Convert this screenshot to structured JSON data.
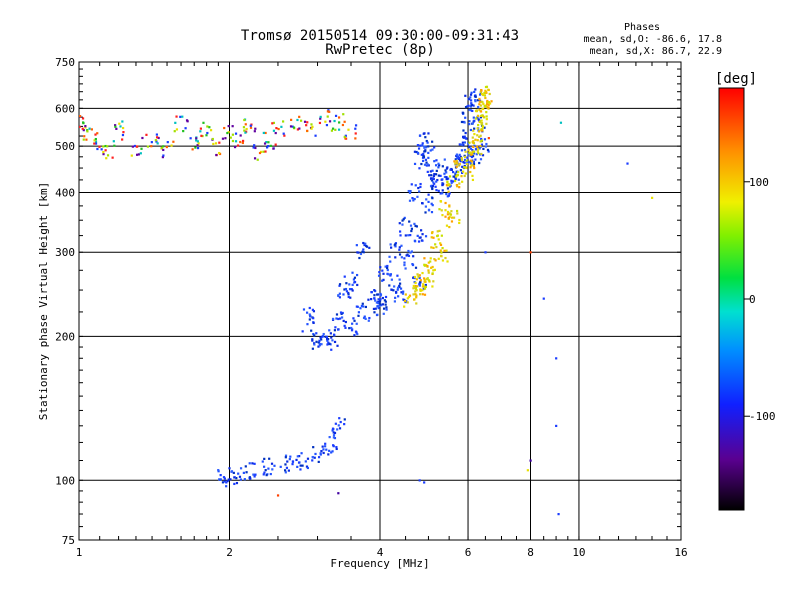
{
  "chart_data": {
    "type": "scatter",
    "title": "Tromsø 20150514 09:30:00-09:31:43",
    "subtitle": "RwPretec (8p)",
    "xlabel": "Frequency [MHz]",
    "ylabel": "Stationary phase Virtual Height [km]",
    "xscale": "log",
    "yscale": "log",
    "xlim": [
      1,
      16
    ],
    "ylim": [
      75,
      750
    ],
    "xticks": [
      1,
      2,
      4,
      6,
      8,
      10,
      16
    ],
    "yticks": [
      75,
      100,
      200,
      300,
      400,
      500,
      600,
      750
    ],
    "grid": true,
    "phase_info": {
      "title": "Phases",
      "o_stats": "mean, sd,O: -86.6, 17.8",
      "x_stats": "mean, sd,X: 86.7, 22.9"
    },
    "colorbar": {
      "label": "[deg]",
      "range": [
        -180,
        180
      ],
      "ticks": [
        100,
        0,
        -100
      ]
    },
    "series": [
      {
        "mode": "O",
        "phase": -100,
        "color": "#1a3cff",
        "x": [
          1.95,
          2.05,
          2.2,
          2.4,
          2.6,
          2.8,
          3.0,
          3.2,
          3.3,
          2.9,
          3.0,
          3.1,
          3.2,
          3.3,
          3.4,
          3.5,
          3.7,
          3.9,
          4.1,
          4.3,
          4.5,
          4.7,
          4.8,
          4.9,
          5.0,
          5.1,
          5.2,
          5.4,
          5.6,
          5.8,
          5.9,
          6.0,
          6.1,
          6.2,
          6.3,
          6.4,
          4.0,
          4.3,
          4.6,
          4.8,
          5.0,
          5.2,
          5.5,
          5.8,
          6.0,
          6.2,
          3.5,
          3.7,
          4.0,
          4.4,
          4.8
        ],
        "y": [
          101,
          102,
          105,
          107,
          108,
          110,
          113,
          118,
          130,
          222,
          197,
          196,
          200,
          215,
          250,
          210,
          225,
          245,
          270,
          300,
          340,
          400,
          470,
          510,
          490,
          450,
          430,
          410,
          430,
          470,
          520,
          580,
          630,
          620,
          560,
          500,
          230,
          260,
          290,
          330,
          380,
          420,
          450,
          460,
          470,
          480,
          260,
          300,
          235,
          245,
          255
        ]
      },
      {
        "mode": "X",
        "phase": 100,
        "color": "#e8e000",
        "x": [
          4.6,
          4.8,
          5.0,
          5.2,
          5.4,
          5.6,
          5.8,
          6.0,
          6.2,
          6.4,
          6.5,
          6.5,
          6.4,
          4.8,
          5.0,
          5.3,
          5.6,
          6.0,
          6.3,
          6.5
        ],
        "y": [
          240,
          260,
          280,
          320,
          370,
          420,
          450,
          470,
          500,
          560,
          620,
          600,
          580,
          250,
          265,
          300,
          350,
          440,
          520,
          640
        ]
      },
      {
        "mode": "mixed",
        "phase": 0,
        "color": "#c0a000",
        "x": [
          1.0,
          1.05,
          1.1,
          1.15,
          1.2,
          1.3,
          1.4,
          1.5,
          1.6,
          1.7,
          1.8,
          1.9,
          2.0,
          2.1,
          2.2,
          2.3,
          2.4,
          2.5,
          2.7,
          2.9,
          3.1,
          3.3,
          3.5
        ],
        "y": [
          560,
          530,
          510,
          490,
          540,
          500,
          520,
          490,
          560,
          510,
          540,
          500,
          530,
          520,
          560,
          490,
          510,
          540,
          560,
          550,
          570,
          560,
          540
        ]
      },
      {
        "mode": "scattered",
        "phase": -100,
        "color": "#1a3cff",
        "x": [
          8.0,
          8.5,
          9.0,
          9.0,
          9.1,
          9.2,
          12.5,
          14.0,
          8.0,
          7.9,
          6.6,
          4.8,
          4.9,
          2.5,
          2.8,
          3.3,
          6.5
        ],
        "y": [
          300,
          240,
          180,
          130,
          85,
          560,
          460,
          390,
          110,
          105,
          520,
          100,
          99,
          93,
          205,
          94,
          300
        ]
      }
    ]
  }
}
